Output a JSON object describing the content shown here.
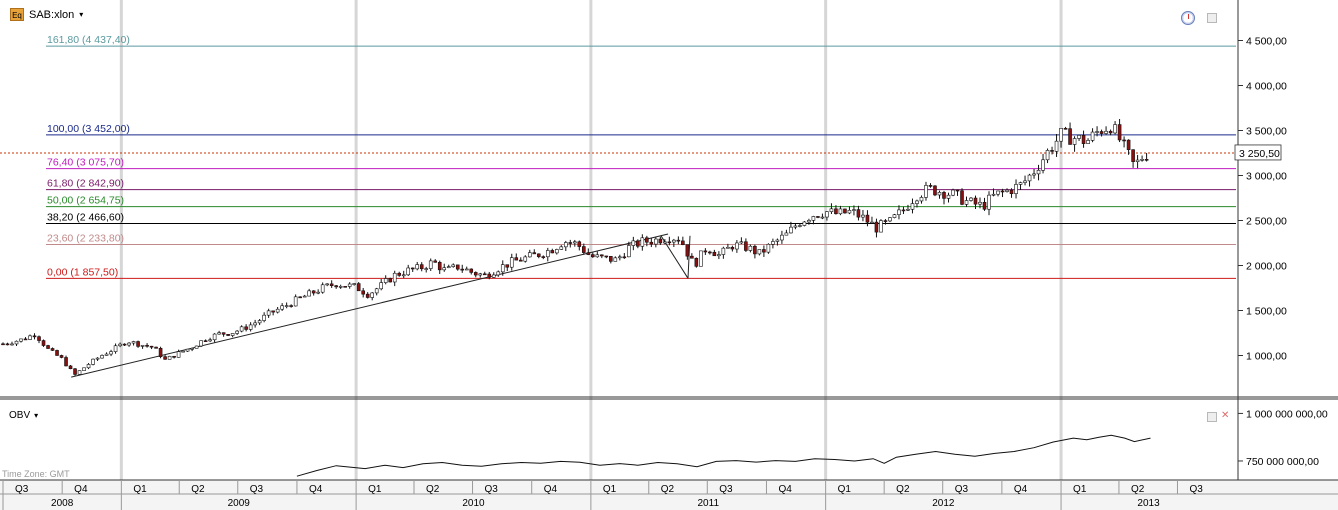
{
  "toolbar": {
    "symbol": "SAB:xlon",
    "badge": "Eq",
    "caret": "▾"
  },
  "indicator": {
    "name": "OBV",
    "caret": "▾"
  },
  "timezone": "Time Zone: GMT",
  "icons": [
    "clock-icon",
    "maximize-icon",
    "close-icon"
  ],
  "price_readout": "3 250,50",
  "chart_data": [
    {
      "type": "candlestick",
      "y_axis_labels": [
        "4 500,00",
        "4 000,00",
        "3 500,00",
        "3 000,00",
        "2 500,00",
        "2 000,00",
        "1 500,00",
        "1 000,00"
      ],
      "y_axis_values": [
        4500,
        4000,
        3500,
        3000,
        2500,
        2000,
        1500,
        1000
      ],
      "ylim": [
        550,
        4950
      ],
      "x_range": [
        "2008-07-01",
        "2013-09-30"
      ],
      "current_price": 3250.5,
      "fib_levels": [
        {
          "label": "161,80 (4 437,40)",
          "value": 4437.4,
          "color": "#5a9aa0"
        },
        {
          "label": "100,00 (3 452,00)",
          "value": 3452.0,
          "color": "#1a2a8a"
        },
        {
          "label": "76,40 (3 075,70)",
          "value": 3075.7,
          "color": "#c01cc0"
        },
        {
          "label": "61,80 (2 842,90)",
          "value": 2842.9,
          "color": "#7a1a6a"
        },
        {
          "label": "50,00 (2 654,75)",
          "value": 2654.75,
          "color": "#2a8a2a"
        },
        {
          "label": "38,20 (2 466,60)",
          "value": 2466.6,
          "color": "#000000"
        },
        {
          "label": "23,60 (2 233,80)",
          "value": 2233.8,
          "color": "#c08a8a"
        },
        {
          "label": "0,00 (1 857,50)",
          "value": 1857.5,
          "color": "#cc1a1a"
        }
      ],
      "trend_line": [
        [
          "2008-10-15",
          760
        ],
        [
          "2011-05-01",
          2350
        ],
        [
          "2011-06-01",
          1857.5
        ],
        [
          "2011-04-20",
          2330
        ]
      ],
      "price_path": [
        [
          "2008-07-01",
          1130
        ],
        [
          "2008-08-01",
          1180
        ],
        [
          "2008-08-20",
          1240
        ],
        [
          "2008-09-10",
          1060
        ],
        [
          "2008-10-01",
          960
        ],
        [
          "2008-10-20",
          780
        ],
        [
          "2008-11-10",
          900
        ],
        [
          "2008-12-01",
          1000
        ],
        [
          "2008-12-20",
          1070
        ],
        [
          "2009-01-10",
          1160
        ],
        [
          "2009-02-01",
          1120
        ],
        [
          "2009-02-20",
          1090
        ],
        [
          "2009-03-10",
          950
        ],
        [
          "2009-04-01",
          1030
        ],
        [
          "2009-04-20",
          1090
        ],
        [
          "2009-05-10",
          1180
        ],
        [
          "2009-06-01",
          1240
        ],
        [
          "2009-06-20",
          1250
        ],
        [
          "2009-07-10",
          1300
        ],
        [
          "2009-08-01",
          1380
        ],
        [
          "2009-08-20",
          1470
        ],
        [
          "2009-09-10",
          1540
        ],
        [
          "2009-10-01",
          1620
        ],
        [
          "2009-10-20",
          1680
        ],
        [
          "2009-11-10",
          1750
        ],
        [
          "2009-12-01",
          1800
        ],
        [
          "2010-01-01",
          1760
        ],
        [
          "2010-01-20",
          1680
        ],
        [
          "2010-02-10",
          1780
        ],
        [
          "2010-03-01",
          1890
        ],
        [
          "2010-03-20",
          1940
        ],
        [
          "2010-04-10",
          1970
        ],
        [
          "2010-05-01",
          2040
        ],
        [
          "2010-05-20",
          1940
        ],
        [
          "2010-06-10",
          1990
        ],
        [
          "2010-07-01",
          1920
        ],
        [
          "2010-07-20",
          1890
        ],
        [
          "2010-08-10",
          1970
        ],
        [
          "2010-09-01",
          2040
        ],
        [
          "2010-09-20",
          2080
        ],
        [
          "2010-10-10",
          2120
        ],
        [
          "2010-11-01",
          2180
        ],
        [
          "2010-11-20",
          2270
        ],
        [
          "2010-12-10",
          2240
        ],
        [
          "2011-01-01",
          2100
        ],
        [
          "2011-01-20",
          2080
        ],
        [
          "2011-02-10",
          2060
        ],
        [
          "2011-03-01",
          2200
        ],
        [
          "2011-03-20",
          2260
        ],
        [
          "2011-04-10",
          2280
        ],
        [
          "2011-05-01",
          2320
        ],
        [
          "2011-05-20",
          2300
        ],
        [
          "2011-06-10",
          2000
        ],
        [
          "2011-07-01",
          2210
        ],
        [
          "2011-07-20",
          2110
        ],
        [
          "2011-08-10",
          2230
        ],
        [
          "2011-09-01",
          2200
        ],
        [
          "2011-09-20",
          2130
        ],
        [
          "2011-10-10",
          2240
        ],
        [
          "2011-11-01",
          2340
        ],
        [
          "2011-11-20",
          2480
        ],
        [
          "2011-12-10",
          2560
        ],
        [
          "2012-01-01",
          2600
        ],
        [
          "2012-01-20",
          2570
        ],
        [
          "2012-02-10",
          2600
        ],
        [
          "2012-03-01",
          2520
        ],
        [
          "2012-03-20",
          2420
        ],
        [
          "2012-04-10",
          2480
        ],
        [
          "2012-05-01",
          2620
        ],
        [
          "2012-05-20",
          2780
        ],
        [
          "2012-06-10",
          2850
        ],
        [
          "2012-07-01",
          2820
        ],
        [
          "2012-07-20",
          2780
        ],
        [
          "2012-08-10",
          2700
        ],
        [
          "2012-09-01",
          2660
        ],
        [
          "2012-09-20",
          2780
        ],
        [
          "2012-10-10",
          2830
        ],
        [
          "2012-11-01",
          2900
        ],
        [
          "2012-11-20",
          3050
        ],
        [
          "2012-12-10",
          3250
        ],
        [
          "2013-01-01",
          3450
        ],
        [
          "2013-01-20",
          3420
        ],
        [
          "2013-02-10",
          3380
        ],
        [
          "2013-03-01",
          3500
        ],
        [
          "2013-03-20",
          3560
        ],
        [
          "2013-04-10",
          3300
        ],
        [
          "2013-04-25",
          3100
        ],
        [
          "2013-05-10",
          3230
        ],
        [
          "2013-05-20",
          3250.5
        ]
      ]
    },
    {
      "type": "line",
      "series_name": "OBV",
      "y_axis_labels": [
        "1 000 000 000,00",
        "750 000 000,00"
      ],
      "y_axis_values": [
        1000000000,
        750000000
      ],
      "ylim": [
        650000000,
        1060000000
      ],
      "points": [
        [
          "2009-10-01",
          670000000
        ],
        [
          "2009-11-01",
          700000000
        ],
        [
          "2009-12-01",
          725000000
        ],
        [
          "2010-01-15",
          710000000
        ],
        [
          "2010-02-15",
          728000000
        ],
        [
          "2010-03-15",
          715000000
        ],
        [
          "2010-04-15",
          735000000
        ],
        [
          "2010-05-15",
          742000000
        ],
        [
          "2010-06-15",
          728000000
        ],
        [
          "2010-07-15",
          722000000
        ],
        [
          "2010-08-15",
          735000000
        ],
        [
          "2010-09-15",
          742000000
        ],
        [
          "2010-10-15",
          738000000
        ],
        [
          "2010-11-15",
          748000000
        ],
        [
          "2010-12-15",
          743000000
        ],
        [
          "2011-01-15",
          728000000
        ],
        [
          "2011-02-15",
          736000000
        ],
        [
          "2011-03-15",
          728000000
        ],
        [
          "2011-04-15",
          742000000
        ],
        [
          "2011-05-15",
          735000000
        ],
        [
          "2011-06-15",
          720000000
        ],
        [
          "2011-07-15",
          748000000
        ],
        [
          "2011-08-15",
          752000000
        ],
        [
          "2011-09-15",
          744000000
        ],
        [
          "2011-10-15",
          752000000
        ],
        [
          "2011-11-15",
          748000000
        ],
        [
          "2011-12-15",
          762000000
        ],
        [
          "2012-01-15",
          758000000
        ],
        [
          "2012-02-15",
          750000000
        ],
        [
          "2012-03-15",
          762000000
        ],
        [
          "2012-04-01",
          738000000
        ],
        [
          "2012-04-20",
          770000000
        ],
        [
          "2012-05-20",
          785000000
        ],
        [
          "2012-06-20",
          800000000
        ],
        [
          "2012-07-20",
          785000000
        ],
        [
          "2012-08-20",
          775000000
        ],
        [
          "2012-09-20",
          790000000
        ],
        [
          "2012-10-20",
          800000000
        ],
        [
          "2012-11-20",
          820000000
        ],
        [
          "2012-12-20",
          850000000
        ],
        [
          "2013-01-20",
          870000000
        ],
        [
          "2013-02-10",
          862000000
        ],
        [
          "2013-03-01",
          875000000
        ],
        [
          "2013-03-20",
          885000000
        ],
        [
          "2013-04-10",
          870000000
        ],
        [
          "2013-04-25",
          852000000
        ],
        [
          "2013-05-20",
          870000000
        ]
      ]
    }
  ],
  "time_axis": {
    "quarters": [
      {
        "label": "Q3",
        "date": "2008-07-01"
      },
      {
        "label": "Q4",
        "date": "2008-10-01"
      },
      {
        "label": "Q1",
        "date": "2009-01-01"
      },
      {
        "label": "Q2",
        "date": "2009-04-01"
      },
      {
        "label": "Q3",
        "date": "2009-07-01"
      },
      {
        "label": "Q4",
        "date": "2009-10-01"
      },
      {
        "label": "Q1",
        "date": "2010-01-01"
      },
      {
        "label": "Q2",
        "date": "2010-04-01"
      },
      {
        "label": "Q3",
        "date": "2010-07-01"
      },
      {
        "label": "Q4",
        "date": "2010-10-01"
      },
      {
        "label": "Q1",
        "date": "2011-01-01"
      },
      {
        "label": "Q2",
        "date": "2011-04-01"
      },
      {
        "label": "Q3",
        "date": "2011-07-01"
      },
      {
        "label": "Q4",
        "date": "2011-10-01"
      },
      {
        "label": "Q1",
        "date": "2012-01-01"
      },
      {
        "label": "Q2",
        "date": "2012-04-01"
      },
      {
        "label": "Q3",
        "date": "2012-07-01"
      },
      {
        "label": "Q4",
        "date": "2012-10-01"
      },
      {
        "label": "Q1",
        "date": "2013-01-01"
      },
      {
        "label": "Q2",
        "date": "2013-04-01"
      },
      {
        "label": "Q3",
        "date": "2013-07-01"
      }
    ],
    "years": [
      {
        "label": "2008",
        "start": "2008-07-01",
        "end": "2009-01-01"
      },
      {
        "label": "2009",
        "start": "2009-01-01",
        "end": "2010-01-01"
      },
      {
        "label": "2010",
        "start": "2010-01-01",
        "end": "2011-01-01"
      },
      {
        "label": "2011",
        "start": "2011-01-01",
        "end": "2012-01-01"
      },
      {
        "label": "2012",
        "start": "2012-01-01",
        "end": "2013-01-01"
      },
      {
        "label": "2013",
        "start": "2013-01-01",
        "end": "2013-09-30"
      }
    ]
  }
}
